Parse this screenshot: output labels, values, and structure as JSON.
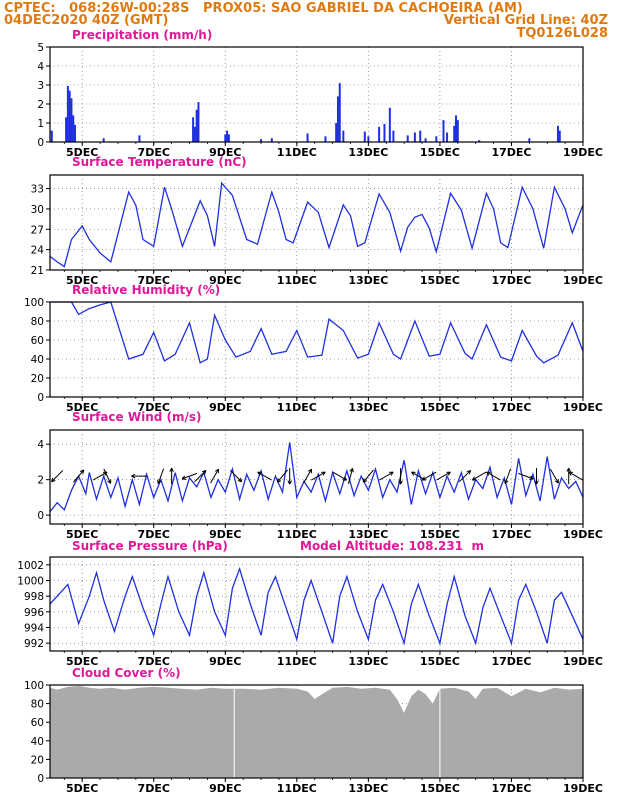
{
  "header": {
    "line1_left": "CPTEC:   068:26W-00:28S   PROX05: SAO GABRIEL DA CACHOEIRA (AM)",
    "line2_left": "04DEC2020 40Z (GMT)",
    "line2_right": "Vertical Grid Line: 40Z",
    "line3_right": "TQ0126L028"
  },
  "colors": {
    "header": "#e07a10",
    "panel_title": "#e0189a",
    "series": "#2030e0",
    "cloud": "#aaaaaa"
  },
  "x_ticks": [
    "5DEC",
    "7DEC",
    "9DEC",
    "11DEC",
    "13DEC",
    "15DEC",
    "17DEC",
    "19DEC"
  ],
  "chart_data": [
    {
      "type": "bar",
      "title": "Precipitation (mm/h)",
      "x_range_days": [
        4.1,
        19.0
      ],
      "ylim": [
        0,
        5
      ],
      "yticks": [
        0,
        1,
        2,
        3,
        4,
        5
      ],
      "grid": true,
      "bars": [
        [
          4.15,
          0.6
        ],
        [
          4.55,
          1.3
        ],
        [
          4.6,
          2.95
        ],
        [
          4.65,
          2.7
        ],
        [
          4.7,
          2.3
        ],
        [
          4.75,
          1.4
        ],
        [
          4.8,
          0.9
        ],
        [
          5.6,
          0.2
        ],
        [
          6.6,
          0.35
        ],
        [
          8.1,
          1.3
        ],
        [
          8.15,
          0.8
        ],
        [
          8.2,
          1.7
        ],
        [
          8.25,
          2.1
        ],
        [
          9.0,
          0.4
        ],
        [
          9.05,
          0.6
        ],
        [
          9.1,
          0.4
        ],
        [
          10.0,
          0.15
        ],
        [
          10.3,
          0.2
        ],
        [
          11.3,
          0.45
        ],
        [
          11.8,
          0.3
        ],
        [
          12.1,
          1.0
        ],
        [
          12.15,
          2.4
        ],
        [
          12.2,
          3.1
        ],
        [
          12.3,
          0.6
        ],
        [
          12.9,
          0.55
        ],
        [
          13.0,
          0.3
        ],
        [
          13.3,
          0.8
        ],
        [
          13.45,
          0.95
        ],
        [
          13.6,
          1.8
        ],
        [
          13.7,
          0.6
        ],
        [
          14.1,
          0.35
        ],
        [
          14.3,
          0.5
        ],
        [
          14.45,
          0.6
        ],
        [
          14.6,
          0.2
        ],
        [
          14.9,
          0.3
        ],
        [
          15.1,
          1.15
        ],
        [
          15.2,
          0.5
        ],
        [
          15.4,
          0.85
        ],
        [
          15.45,
          1.4
        ],
        [
          15.5,
          1.15
        ],
        [
          16.1,
          0.1
        ],
        [
          17.5,
          0.2
        ],
        [
          18.3,
          0.85
        ],
        [
          18.35,
          0.6
        ]
      ]
    },
    {
      "type": "line",
      "title": "Surface Temperature (nC)",
      "x_range_days": [
        4.1,
        19.0
      ],
      "ylim": [
        21,
        35
      ],
      "yticks": [
        21,
        24,
        27,
        30,
        33
      ],
      "grid": true,
      "x": [
        4.1,
        4.3,
        4.5,
        4.7,
        5.0,
        5.2,
        5.5,
        5.8,
        6.3,
        6.5,
        6.7,
        7.0,
        7.3,
        7.5,
        7.8,
        8.3,
        8.5,
        8.7,
        8.9,
        9.2,
        9.6,
        9.9,
        10.3,
        10.5,
        10.7,
        10.9,
        11.3,
        11.6,
        11.9,
        12.3,
        12.5,
        12.7,
        12.9,
        13.3,
        13.6,
        13.9,
        14.1,
        14.3,
        14.5,
        14.7,
        14.9,
        15.3,
        15.6,
        15.9,
        16.3,
        16.5,
        16.7,
        16.9,
        17.3,
        17.6,
        17.9,
        18.2,
        18.5,
        18.7,
        19.0
      ],
      "y": [
        23,
        22.2,
        21.5,
        25.5,
        27.5,
        25.5,
        23.5,
        22.2,
        32.5,
        30.5,
        25.5,
        24.5,
        33.2,
        30,
        24.5,
        31.2,
        29,
        24.5,
        33.8,
        32,
        25.5,
        24.8,
        32.5,
        29.5,
        25.5,
        25,
        31,
        29.5,
        24.3,
        30.6,
        29,
        24.5,
        25,
        32.2,
        29.5,
        23.8,
        27.3,
        28.8,
        29.2,
        27.2,
        23.7,
        32.3,
        29.8,
        24.2,
        32.3,
        30,
        25,
        24.3,
        33.2,
        30,
        24.2,
        33.2,
        30,
        26.5,
        30.6
      ]
    },
    {
      "type": "line",
      "title": "Relative Humidity (%)",
      "x_range_days": [
        4.1,
        19.0
      ],
      "ylim": [
        0,
        100
      ],
      "yticks": [
        0,
        20,
        40,
        60,
        80,
        100
      ],
      "grid": true,
      "x": [
        4.1,
        4.4,
        4.7,
        4.9,
        5.2,
        5.5,
        5.8,
        6.3,
        6.7,
        7.0,
        7.3,
        7.6,
        8.0,
        8.3,
        8.5,
        8.7,
        9.0,
        9.3,
        9.7,
        10.0,
        10.3,
        10.7,
        11.0,
        11.3,
        11.7,
        11.9,
        12.3,
        12.7,
        13.0,
        13.3,
        13.7,
        13.9,
        14.3,
        14.7,
        15.0,
        15.3,
        15.7,
        15.9,
        16.3,
        16.7,
        17.0,
        17.3,
        17.7,
        17.9,
        18.3,
        18.7,
        19.0
      ],
      "y": [
        100,
        100,
        100,
        87,
        93,
        97,
        100,
        40,
        45,
        68,
        38,
        45,
        78,
        36,
        40,
        86,
        60,
        42,
        48,
        72,
        45,
        48,
        70,
        42,
        44,
        82,
        70,
        41,
        45,
        78,
        45,
        40,
        80,
        43,
        45,
        78,
        46,
        40,
        76,
        42,
        38,
        70,
        43,
        36,
        44,
        78,
        48
      ]
    },
    {
      "type": "line",
      "title": "Surface Wind (m/s)",
      "x_range_days": [
        4.1,
        19.0
      ],
      "ylim": [
        -0.5,
        4.8
      ],
      "yticks": [
        0,
        2,
        4
      ],
      "grid": true,
      "x": [
        4.1,
        4.3,
        4.5,
        4.7,
        4.9,
        5.1,
        5.2,
        5.4,
        5.6,
        5.8,
        6.0,
        6.2,
        6.4,
        6.6,
        6.8,
        7.0,
        7.2,
        7.4,
        7.6,
        7.8,
        8.0,
        8.2,
        8.4,
        8.6,
        8.8,
        9.0,
        9.2,
        9.4,
        9.6,
        9.8,
        10.0,
        10.2,
        10.4,
        10.6,
        10.8,
        11.0,
        11.2,
        11.4,
        11.6,
        11.8,
        12.0,
        12.2,
        12.4,
        12.6,
        12.8,
        13.0,
        13.2,
        13.4,
        13.6,
        13.8,
        14.0,
        14.2,
        14.4,
        14.6,
        14.8,
        15.0,
        15.2,
        15.4,
        15.6,
        15.8,
        16.0,
        16.2,
        16.4,
        16.6,
        16.8,
        17.0,
        17.2,
        17.4,
        17.6,
        17.8,
        18.0,
        18.2,
        18.4,
        18.6,
        18.8,
        19.0
      ],
      "y": [
        0.2,
        0.7,
        0.3,
        1.4,
        2.2,
        1.2,
        2.4,
        0.9,
        2.2,
        1.0,
        2.1,
        0.5,
        2.0,
        0.6,
        2.3,
        1.0,
        2.0,
        0.8,
        2.4,
        0.8,
        2.1,
        1.6,
        2.4,
        1.0,
        2.0,
        1.3,
        2.6,
        0.9,
        2.3,
        1.4,
        2.5,
        0.9,
        2.2,
        1.3,
        4.1,
        1.0,
        1.9,
        1.3,
        2.3,
        0.8,
        2.4,
        1.2,
        2.5,
        1.1,
        2.2,
        1.4,
        2.6,
        1.0,
        2.0,
        1.3,
        3.1,
        0.6,
        2.5,
        1.2,
        2.4,
        1.0,
        2.2,
        1.3,
        2.4,
        0.9,
        2.0,
        1.5,
        2.7,
        1.0,
        2.1,
        0.6,
        3.2,
        1.1,
        2.3,
        0.8,
        3.3,
        0.9,
        2.1,
        1.5,
        1.9,
        1.0
      ]
    },
    {
      "type": "line",
      "title": "Surface Pressure (hPa)",
      "annotation": "Model Altitude: 108.231  m",
      "x_range_days": [
        4.1,
        19.0
      ],
      "ylim": [
        991,
        1003
      ],
      "yticks": [
        992,
        994,
        996,
        998,
        1000,
        1002
      ],
      "grid": true,
      "x": [
        4.1,
        4.3,
        4.6,
        4.9,
        5.2,
        5.4,
        5.6,
        5.9,
        6.2,
        6.4,
        6.7,
        7.0,
        7.2,
        7.4,
        7.7,
        8.0,
        8.2,
        8.4,
        8.7,
        9.0,
        9.2,
        9.4,
        9.7,
        10.0,
        10.2,
        10.4,
        10.7,
        11.0,
        11.2,
        11.4,
        11.7,
        12.0,
        12.2,
        12.4,
        12.7,
        13.0,
        13.2,
        13.4,
        13.7,
        14.0,
        14.2,
        14.4,
        14.7,
        15.0,
        15.2,
        15.4,
        15.7,
        16.0,
        16.2,
        16.4,
        16.7,
        17.0,
        17.2,
        17.4,
        17.7,
        18.0,
        18.2,
        18.4,
        18.7,
        19.0
      ],
      "y": [
        997,
        998,
        999.5,
        994.5,
        998,
        1001,
        997.5,
        993.5,
        998,
        1000.5,
        996.5,
        993,
        997,
        1000.5,
        996,
        993,
        998,
        1001,
        996,
        993,
        999,
        1001.5,
        997,
        993,
        998.5,
        1000.5,
        996.5,
        992.5,
        997.5,
        1000,
        996,
        992,
        998,
        1000.5,
        996,
        992.5,
        997.5,
        999.5,
        996,
        992,
        997,
        999.5,
        995.5,
        992,
        997,
        1000.5,
        995.5,
        992,
        996.5,
        999,
        995.5,
        992,
        997.5,
        999.5,
        996,
        992,
        997.5,
        998.5,
        995.5,
        992.5
      ]
    },
    {
      "type": "area",
      "title": "Cloud Cover (%)",
      "x_range_days": [
        4.1,
        19.0
      ],
      "ylim": [
        0,
        100
      ],
      "yticks": [
        0,
        20,
        40,
        60,
        80,
        100
      ],
      "grid": true,
      "x": [
        4.1,
        4.3,
        4.6,
        4.9,
        5.2,
        5.5,
        5.8,
        6.2,
        6.6,
        7.0,
        7.4,
        7.8,
        8.2,
        8.6,
        9.0,
        9.5,
        10.0,
        10.5,
        11.0,
        11.3,
        11.5,
        11.7,
        12.0,
        12.4,
        12.8,
        13.2,
        13.6,
        13.8,
        14.0,
        14.2,
        14.4,
        14.6,
        14.8,
        15.0,
        15.4,
        15.8,
        16.0,
        16.2,
        16.6,
        17.0,
        17.4,
        17.8,
        18.2,
        18.6,
        19.0
      ],
      "y": [
        97,
        95,
        98,
        99,
        97,
        96,
        97,
        95,
        97,
        98,
        97,
        96,
        95,
        97,
        96,
        96,
        95,
        97,
        96,
        93,
        85,
        90,
        97,
        98,
        96,
        97,
        95,
        85,
        70,
        88,
        95,
        90,
        80,
        96,
        97,
        93,
        85,
        96,
        97,
        88,
        96,
        92,
        97,
        95,
        96
      ]
    }
  ]
}
